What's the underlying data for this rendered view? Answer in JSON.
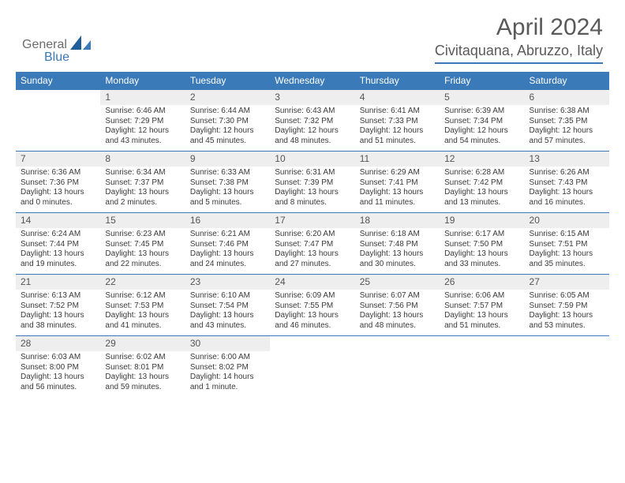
{
  "brand": {
    "word1": "General",
    "word2": "Blue",
    "logo_color": "#3a7ab8"
  },
  "title": {
    "month": "April 2024",
    "location": "Civitaquana, Abruzzo, Italy"
  },
  "colors": {
    "header_bg": "#3a7ab8",
    "header_text": "#ffffff",
    "daynum_bg": "#eeeeee",
    "accent_line": "#3a7ab8",
    "body_text": "#3a3a3a"
  },
  "weekdays": [
    "Sunday",
    "Monday",
    "Tuesday",
    "Wednesday",
    "Thursday",
    "Friday",
    "Saturday"
  ],
  "weeks": [
    [
      null,
      {
        "n": "1",
        "sr": "Sunrise: 6:46 AM",
        "ss": "Sunset: 7:29 PM",
        "d1": "Daylight: 12 hours",
        "d2": "and 43 minutes."
      },
      {
        "n": "2",
        "sr": "Sunrise: 6:44 AM",
        "ss": "Sunset: 7:30 PM",
        "d1": "Daylight: 12 hours",
        "d2": "and 45 minutes."
      },
      {
        "n": "3",
        "sr": "Sunrise: 6:43 AM",
        "ss": "Sunset: 7:32 PM",
        "d1": "Daylight: 12 hours",
        "d2": "and 48 minutes."
      },
      {
        "n": "4",
        "sr": "Sunrise: 6:41 AM",
        "ss": "Sunset: 7:33 PM",
        "d1": "Daylight: 12 hours",
        "d2": "and 51 minutes."
      },
      {
        "n": "5",
        "sr": "Sunrise: 6:39 AM",
        "ss": "Sunset: 7:34 PM",
        "d1": "Daylight: 12 hours",
        "d2": "and 54 minutes."
      },
      {
        "n": "6",
        "sr": "Sunrise: 6:38 AM",
        "ss": "Sunset: 7:35 PM",
        "d1": "Daylight: 12 hours",
        "d2": "and 57 minutes."
      }
    ],
    [
      {
        "n": "7",
        "sr": "Sunrise: 6:36 AM",
        "ss": "Sunset: 7:36 PM",
        "d1": "Daylight: 13 hours",
        "d2": "and 0 minutes."
      },
      {
        "n": "8",
        "sr": "Sunrise: 6:34 AM",
        "ss": "Sunset: 7:37 PM",
        "d1": "Daylight: 13 hours",
        "d2": "and 2 minutes."
      },
      {
        "n": "9",
        "sr": "Sunrise: 6:33 AM",
        "ss": "Sunset: 7:38 PM",
        "d1": "Daylight: 13 hours",
        "d2": "and 5 minutes."
      },
      {
        "n": "10",
        "sr": "Sunrise: 6:31 AM",
        "ss": "Sunset: 7:39 PM",
        "d1": "Daylight: 13 hours",
        "d2": "and 8 minutes."
      },
      {
        "n": "11",
        "sr": "Sunrise: 6:29 AM",
        "ss": "Sunset: 7:41 PM",
        "d1": "Daylight: 13 hours",
        "d2": "and 11 minutes."
      },
      {
        "n": "12",
        "sr": "Sunrise: 6:28 AM",
        "ss": "Sunset: 7:42 PM",
        "d1": "Daylight: 13 hours",
        "d2": "and 13 minutes."
      },
      {
        "n": "13",
        "sr": "Sunrise: 6:26 AM",
        "ss": "Sunset: 7:43 PM",
        "d1": "Daylight: 13 hours",
        "d2": "and 16 minutes."
      }
    ],
    [
      {
        "n": "14",
        "sr": "Sunrise: 6:24 AM",
        "ss": "Sunset: 7:44 PM",
        "d1": "Daylight: 13 hours",
        "d2": "and 19 minutes."
      },
      {
        "n": "15",
        "sr": "Sunrise: 6:23 AM",
        "ss": "Sunset: 7:45 PM",
        "d1": "Daylight: 13 hours",
        "d2": "and 22 minutes."
      },
      {
        "n": "16",
        "sr": "Sunrise: 6:21 AM",
        "ss": "Sunset: 7:46 PM",
        "d1": "Daylight: 13 hours",
        "d2": "and 24 minutes."
      },
      {
        "n": "17",
        "sr": "Sunrise: 6:20 AM",
        "ss": "Sunset: 7:47 PM",
        "d1": "Daylight: 13 hours",
        "d2": "and 27 minutes."
      },
      {
        "n": "18",
        "sr": "Sunrise: 6:18 AM",
        "ss": "Sunset: 7:48 PM",
        "d1": "Daylight: 13 hours",
        "d2": "and 30 minutes."
      },
      {
        "n": "19",
        "sr": "Sunrise: 6:17 AM",
        "ss": "Sunset: 7:50 PM",
        "d1": "Daylight: 13 hours",
        "d2": "and 33 minutes."
      },
      {
        "n": "20",
        "sr": "Sunrise: 6:15 AM",
        "ss": "Sunset: 7:51 PM",
        "d1": "Daylight: 13 hours",
        "d2": "and 35 minutes."
      }
    ],
    [
      {
        "n": "21",
        "sr": "Sunrise: 6:13 AM",
        "ss": "Sunset: 7:52 PM",
        "d1": "Daylight: 13 hours",
        "d2": "and 38 minutes."
      },
      {
        "n": "22",
        "sr": "Sunrise: 6:12 AM",
        "ss": "Sunset: 7:53 PM",
        "d1": "Daylight: 13 hours",
        "d2": "and 41 minutes."
      },
      {
        "n": "23",
        "sr": "Sunrise: 6:10 AM",
        "ss": "Sunset: 7:54 PM",
        "d1": "Daylight: 13 hours",
        "d2": "and 43 minutes."
      },
      {
        "n": "24",
        "sr": "Sunrise: 6:09 AM",
        "ss": "Sunset: 7:55 PM",
        "d1": "Daylight: 13 hours",
        "d2": "and 46 minutes."
      },
      {
        "n": "25",
        "sr": "Sunrise: 6:07 AM",
        "ss": "Sunset: 7:56 PM",
        "d1": "Daylight: 13 hours",
        "d2": "and 48 minutes."
      },
      {
        "n": "26",
        "sr": "Sunrise: 6:06 AM",
        "ss": "Sunset: 7:57 PM",
        "d1": "Daylight: 13 hours",
        "d2": "and 51 minutes."
      },
      {
        "n": "27",
        "sr": "Sunrise: 6:05 AM",
        "ss": "Sunset: 7:59 PM",
        "d1": "Daylight: 13 hours",
        "d2": "and 53 minutes."
      }
    ],
    [
      {
        "n": "28",
        "sr": "Sunrise: 6:03 AM",
        "ss": "Sunset: 8:00 PM",
        "d1": "Daylight: 13 hours",
        "d2": "and 56 minutes."
      },
      {
        "n": "29",
        "sr": "Sunrise: 6:02 AM",
        "ss": "Sunset: 8:01 PM",
        "d1": "Daylight: 13 hours",
        "d2": "and 59 minutes."
      },
      {
        "n": "30",
        "sr": "Sunrise: 6:00 AM",
        "ss": "Sunset: 8:02 PM",
        "d1": "Daylight: 14 hours",
        "d2": "and 1 minute."
      },
      null,
      null,
      null,
      null
    ]
  ]
}
